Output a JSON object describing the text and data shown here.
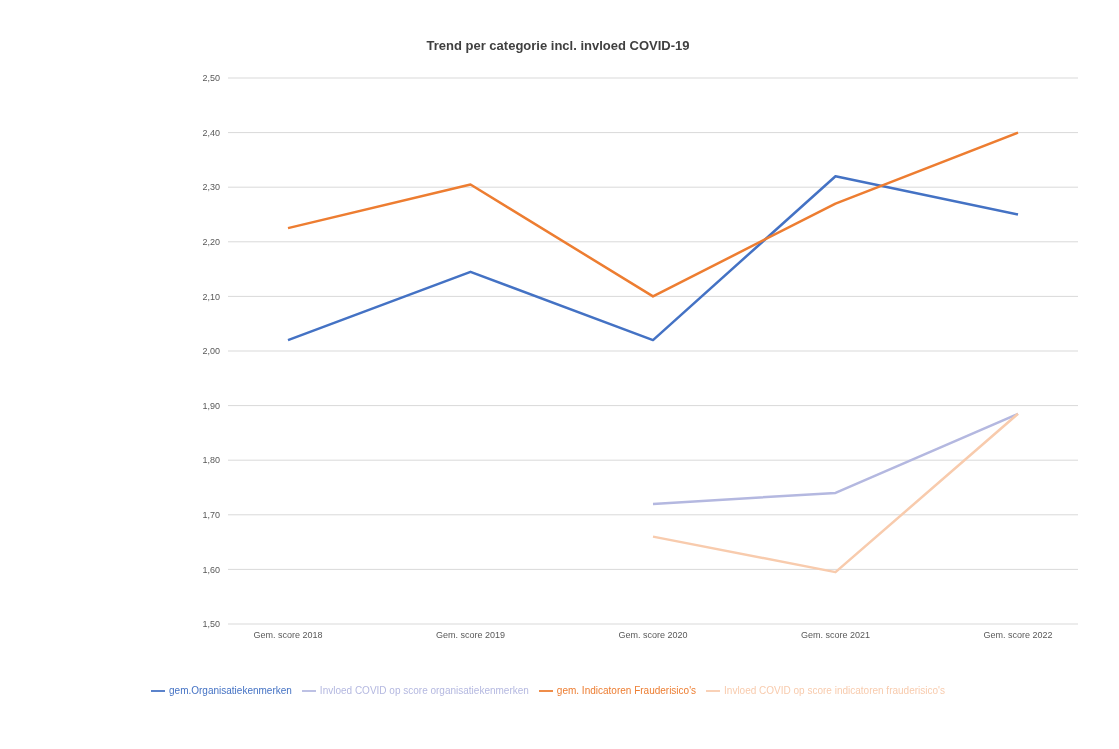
{
  "chart_data": {
    "type": "line",
    "title": "Trend per categorie incl. invloed COVID-19",
    "categories": [
      "Gem. score 2018",
      "Gem. score 2019",
      "Gem. score 2020",
      "Gem. score 2021",
      "Gem. score 2022"
    ],
    "series": [
      {
        "name": "gem.Organisatiekenmerken",
        "color": "#4472c4",
        "values": [
          2.02,
          2.145,
          2.02,
          2.32,
          2.25
        ]
      },
      {
        "name": "Invloed COVID op score organisatiekenmerken",
        "color": "#b4b8e0",
        "values": [
          null,
          null,
          1.72,
          1.74,
          1.885
        ]
      },
      {
        "name": "gem. Indicatoren Frauderisico's",
        "color": "#ed7d31",
        "values": [
          2.225,
          2.305,
          2.1,
          2.27,
          2.4
        ]
      },
      {
        "name": "Invloed COVID op score indicatoren frauderisico's",
        "color": "#f8cbad",
        "values": [
          null,
          null,
          1.66,
          1.595,
          1.885
        ]
      }
    ],
    "ylim": [
      1.5,
      2.5
    ],
    "yticks": [
      {
        "value": 1.5,
        "label": "1,50"
      },
      {
        "value": 1.6,
        "label": "1,60"
      },
      {
        "value": 1.7,
        "label": "1,70"
      },
      {
        "value": 1.8,
        "label": "1,80"
      },
      {
        "value": 1.9,
        "label": "1,90"
      },
      {
        "value": 2.0,
        "label": "2,00"
      },
      {
        "value": 2.1,
        "label": "2,10"
      },
      {
        "value": 2.2,
        "label": "2,20"
      },
      {
        "value": 2.3,
        "label": "2,30"
      },
      {
        "value": 2.4,
        "label": "2,40"
      },
      {
        "value": 2.5,
        "label": "2,50"
      }
    ],
    "grid": "y",
    "legend": "bottom",
    "marker": "none",
    "line_style": "solid"
  }
}
